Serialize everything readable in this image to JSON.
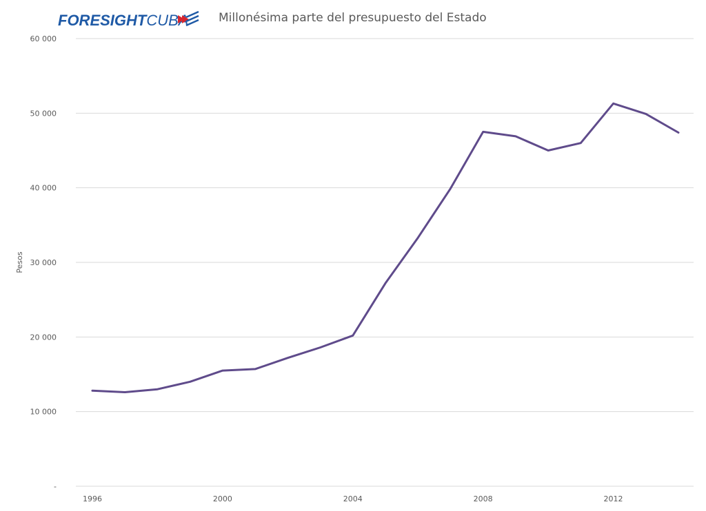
{
  "logo": {
    "part1": "FORESIGHT",
    "part2": "CUBA",
    "color_part1": "#1f5aa6",
    "color_part2": "#1f5aa6",
    "flag_red": "#d7262e",
    "flag_blue": "#1f5aa6"
  },
  "chart_data": {
    "type": "line",
    "title": "Millonésima parte del presupuesto del Estado",
    "xlabel": "",
    "ylabel": "Pesos",
    "x": [
      1996,
      1997,
      1998,
      1999,
      2000,
      2001,
      2002,
      2003,
      2004,
      2005,
      2006,
      2007,
      2008,
      2009,
      2010,
      2011,
      2012,
      2013,
      2014
    ],
    "series": [
      {
        "values": [
          12800,
          12600,
          13000,
          14000,
          15500,
          15700,
          17200,
          18600,
          20200,
          27200,
          33300,
          39900,
          47500,
          46900,
          45000,
          46000,
          51300,
          49900,
          47400
        ],
        "color": "#5f4b8b"
      }
    ],
    "ylim": [
      0,
      60000
    ],
    "xlim": [
      1996,
      2014
    ],
    "yticks": [
      0,
      10000,
      20000,
      30000,
      40000,
      50000,
      60000
    ],
    "ytick_labels": [
      "-",
      "10 000",
      "20 000",
      "30 000",
      "40 000",
      "50 000",
      "60 000"
    ],
    "xticks": [
      1996,
      2000,
      2004,
      2008,
      2012
    ],
    "xtick_labels": [
      "1996",
      "2000",
      "2004",
      "2008",
      "2012"
    ],
    "grid": true,
    "gridline_color": "#d9d9d9",
    "legend": "none"
  }
}
